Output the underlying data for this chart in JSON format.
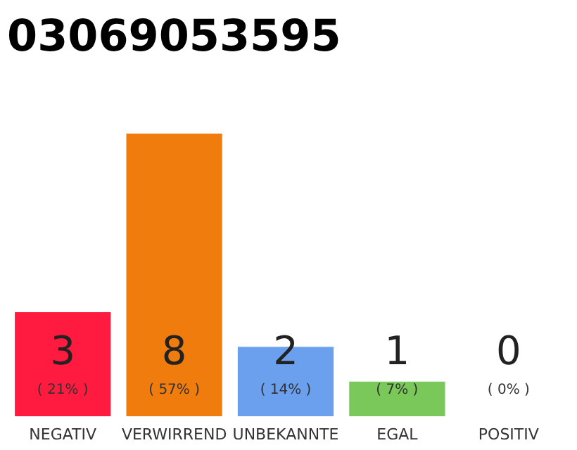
{
  "chart_data": {
    "type": "bar",
    "title": "03069053595",
    "categories": [
      "NEGATIV",
      "VERWIRREND",
      "UNBEKANNTE",
      "EGAL",
      "POSITIV"
    ],
    "values": [
      21,
      57,
      14,
      7,
      0
    ],
    "colors": [
      "#ff1a40",
      "#f07c0e",
      "#6aa0ed",
      "#7ac75a",
      "#d0d0d0"
    ],
    "value_labels": [
      "( 21% )",
      "( 57% )",
      "( 14% )",
      "( 7% )",
      "( 0% )"
    ],
    "annotations": [
      "3",
      "8",
      "2",
      "1",
      "0"
    ],
    "tick_labels": "x"
  }
}
